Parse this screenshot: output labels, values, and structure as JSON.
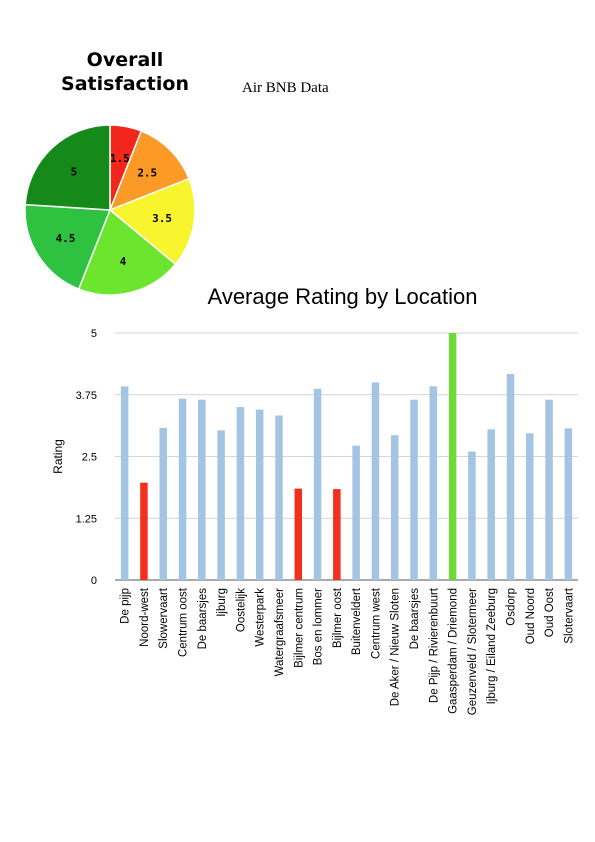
{
  "chart_data": [
    {
      "type": "pie",
      "title_line1": "Overall",
      "title_line2": "Satisfaction",
      "slices": [
        {
          "label": "1.5",
          "value": 6,
          "color": "#f2261d"
        },
        {
          "label": "2.5",
          "value": 13,
          "color": "#fb9a26"
        },
        {
          "label": "3.5",
          "value": 17,
          "color": "#f8f52e"
        },
        {
          "label": "4",
          "value": 20,
          "color": "#6be52e"
        },
        {
          "label": "4.5",
          "value": 20,
          "color": "#2ec240"
        },
        {
          "label": "5",
          "value": 24,
          "color": "#15891a"
        }
      ]
    },
    {
      "type": "bar",
      "subtitle": "Air BNB Data",
      "title": "Average Rating by Location",
      "ylabel": "Rating",
      "ylim": [
        0,
        5
      ],
      "yticks": [
        "0",
        "1.25",
        "2.5",
        "3.75",
        "5"
      ],
      "categories": [
        "De pijp",
        "Noord-west",
        "Slowervaart",
        "Centrum oost",
        "De baarsjes",
        "Ijburg",
        "Oostelijk",
        "Westerpark",
        "Watergraafsmeer",
        "Bijlmer centrum",
        "Bos en lommer",
        "Bijlmer oost",
        "Buitenveldert",
        "Centrum west",
        "De Aker / Nieuw Sloten",
        "De baarsjes",
        "De Pijp / Rivierenbuurt",
        "Gaasperdam / Driemond",
        "Geuzenveld / Slotermeer",
        "Ijburg / Eiland Zeeburg",
        "Osdorp",
        "Oud Noord",
        "Oud Oost",
        "Slotervaart"
      ],
      "values": [
        3.92,
        1.97,
        3.08,
        3.67,
        3.65,
        3.03,
        3.5,
        3.45,
        3.33,
        1.85,
        3.87,
        1.84,
        2.72,
        4.0,
        2.93,
        3.65,
        3.92,
        5.0,
        2.6,
        3.05,
        4.17,
        2.97,
        3.65,
        3.07
      ],
      "colors": {
        "default": "#a3c4e2",
        "low": "#f2301e",
        "high": "#6fd93a"
      },
      "bar_color_keys": [
        "default",
        "low",
        "default",
        "default",
        "default",
        "default",
        "default",
        "default",
        "default",
        "low",
        "default",
        "low",
        "default",
        "default",
        "default",
        "default",
        "default",
        "high",
        "default",
        "default",
        "default",
        "default",
        "default",
        "default"
      ],
      "grid": true,
      "legend": "none"
    }
  ]
}
